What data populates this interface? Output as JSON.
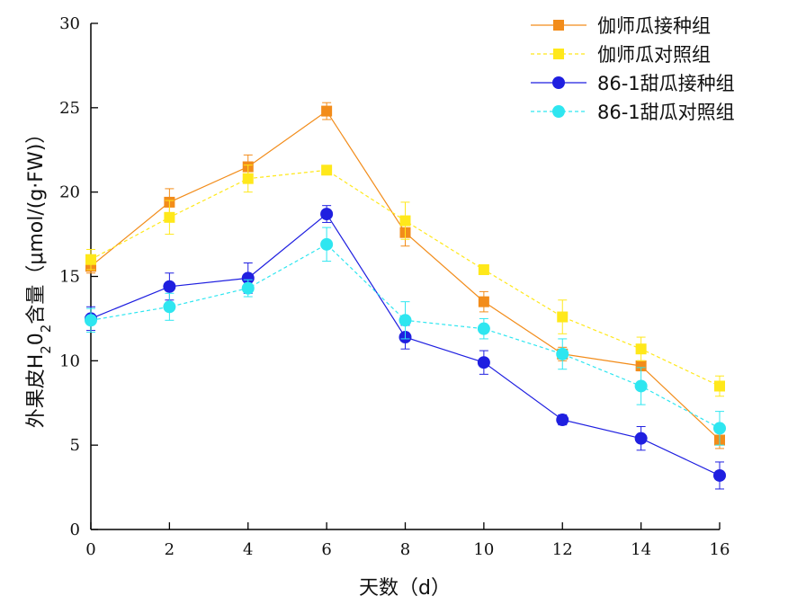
{
  "chart_data": {
    "type": "line",
    "xlabel": "天数（d）",
    "ylabel": {
      "prefix": "外果皮H",
      "sub1": "2",
      "mid": "0",
      "sub2": "2",
      "suffix": "含量（μmol/(g·FW)）"
    },
    "xlim": [
      0,
      16
    ],
    "ylim": [
      0,
      30
    ],
    "x_ticks": [
      0,
      2,
      4,
      6,
      8,
      10,
      12,
      14,
      16
    ],
    "y_ticks": [
      0,
      5,
      10,
      15,
      20,
      25,
      30
    ],
    "grid": false,
    "legend_position": "top-right",
    "x": [
      0,
      2,
      4,
      6,
      8,
      10,
      12,
      14,
      16
    ],
    "series": [
      {
        "name": "伽师瓜接种组",
        "color": "#F28C1A",
        "marker": "square",
        "dash": "solid",
        "values": [
          15.6,
          19.4,
          21.5,
          24.8,
          17.6,
          13.5,
          10.4,
          9.7,
          5.3
        ],
        "errors": [
          0.4,
          0.8,
          0.7,
          0.5,
          0.8,
          0.6,
          0.4,
          0.3,
          0.5
        ]
      },
      {
        "name": "伽师瓜对照组",
        "color": "#FFE81A",
        "marker": "square",
        "dash": "dashed",
        "values": [
          16.0,
          18.5,
          20.8,
          21.3,
          18.3,
          15.4,
          12.6,
          10.7,
          8.5
        ],
        "errors": [
          0.6,
          1.0,
          0.8,
          0.2,
          1.1,
          0.2,
          1.0,
          0.7,
          0.6
        ]
      },
      {
        "name": "86-1甜瓜接种组",
        "color": "#1F1FE0",
        "marker": "circle",
        "dash": "solid",
        "values": [
          12.5,
          14.4,
          14.9,
          18.7,
          11.4,
          9.9,
          6.5,
          5.4,
          3.2
        ],
        "errors": [
          0.7,
          0.8,
          0.9,
          0.5,
          0.7,
          0.7,
          0.3,
          0.7,
          0.8
        ]
      },
      {
        "name": "86-1甜瓜对照组",
        "color": "#2EE6F0",
        "marker": "circle",
        "dash": "dashed",
        "values": [
          12.4,
          13.2,
          14.3,
          16.9,
          12.4,
          11.9,
          10.4,
          8.5,
          6.0
        ],
        "errors": [
          0.7,
          0.8,
          0.5,
          1.0,
          1.1,
          0.6,
          0.9,
          1.1,
          1.0
        ]
      }
    ]
  }
}
